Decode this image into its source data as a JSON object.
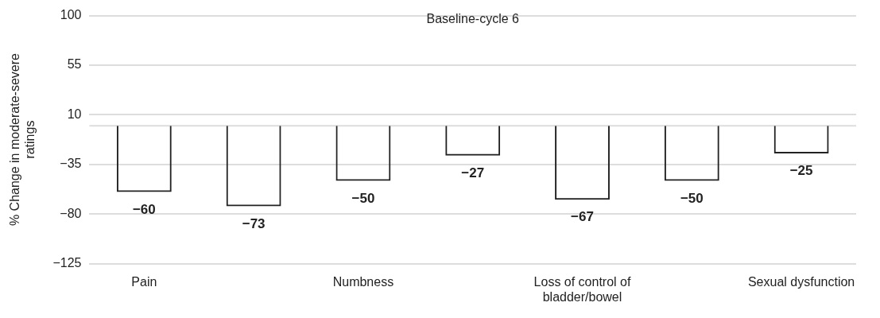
{
  "chart_data": {
    "type": "bar",
    "ylabel": "% Change in moderate-severe ratings",
    "annotations": [
      "Baseline-cycle 6"
    ],
    "categories": [
      "Pain",
      null,
      "Numbness",
      null,
      "Loss of control of bladder/bowel",
      null,
      "Sexual dysfunction"
    ],
    "values": [
      -60,
      -73,
      -50,
      -27,
      -67,
      -50,
      -25
    ],
    "value_labels": [
      "−60",
      "−73",
      "−50",
      "−27",
      "−67",
      "−50",
      "−25"
    ],
    "color": "#222222",
    "ylim": [
      -125,
      100
    ],
    "yticks": [
      100,
      55,
      10,
      {
        "value": -35,
        "label": "−35"
      },
      {
        "value": -80,
        "label": "−80"
      },
      {
        "value": -125,
        "label": "−125"
      }
    ],
    "ref_lines": [
      {
        "axis": "y",
        "value": 0,
        "color": "#dddddd"
      }
    ],
    "grid": "y",
    "legend": false
  }
}
